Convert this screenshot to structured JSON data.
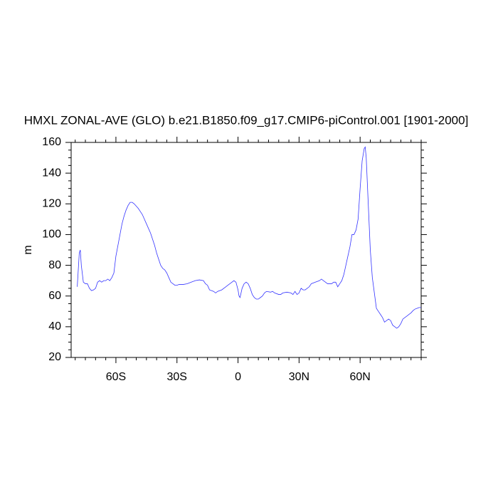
{
  "chart_data": {
    "type": "line",
    "title": "HMXL ZONAL-AVE (GLO) b.e21.B1850.f09_g17.CMIP6-piControl.001 [1901-2000]",
    "y_label": "m",
    "x": [
      -79,
      -78,
      -77.5,
      -77,
      -76,
      -75,
      -74,
      -73,
      -72,
      -71,
      -70,
      -69,
      -68,
      -67,
      -66,
      -65,
      -64,
      -63,
      -62,
      -61,
      -60,
      -59,
      -58,
      -57,
      -56,
      -55,
      -54,
      -53,
      -52,
      -51,
      -50,
      -49,
      -48,
      -47,
      -46,
      -45,
      -44,
      -43,
      -42,
      -41,
      -40,
      -39,
      -38,
      -37,
      -36,
      -35,
      -34,
      -33,
      -32,
      -31,
      -30,
      -29,
      -28,
      -27,
      -25,
      -23,
      -21,
      -19,
      -17,
      -16,
      -15,
      -14,
      -12,
      -11,
      -10,
      -8,
      -6,
      -5,
      -4,
      -2,
      -1,
      0,
      0.5,
      1,
      2,
      3,
      4,
      5,
      6,
      7,
      8,
      9,
      10,
      11,
      12,
      13,
      14,
      16,
      17,
      18,
      20,
      21,
      22,
      24,
      26,
      27,
      28,
      29,
      30,
      31,
      32,
      33,
      35,
      36,
      38,
      40,
      41,
      42,
      43,
      44,
      46,
      47,
      48,
      49,
      50,
      51,
      52,
      53,
      54,
      55,
      56,
      57,
      58,
      59,
      60,
      61,
      62,
      62.5,
      63,
      64,
      65,
      66,
      67,
      68,
      69,
      70,
      71,
      72,
      73,
      74,
      75,
      76,
      77,
      78,
      79,
      80,
      81,
      82,
      83,
      84,
      85,
      86,
      87,
      88,
      89,
      90
    ],
    "series": [
      {
        "name": "HMXL",
        "color": "#3333ff",
        "values": [
          66,
          88,
          90,
          80,
          69,
          68,
          68,
          65,
          63.5,
          64,
          65,
          69,
          70,
          69,
          70,
          70,
          71,
          70,
          72,
          75,
          86,
          93,
          100,
          107,
          112,
          116,
          119,
          121,
          121,
          120,
          118.5,
          117,
          115,
          113,
          110,
          107,
          104,
          101,
          97,
          93,
          88,
          84,
          80,
          78,
          77,
          75,
          72,
          69,
          68,
          67,
          67,
          67.5,
          67.5,
          67.5,
          68,
          69,
          70,
          70.5,
          70,
          68,
          67,
          64,
          63,
          62,
          63,
          64,
          66,
          67,
          68,
          70,
          69,
          64,
          60,
          59,
          65,
          68,
          69,
          68,
          65,
          61,
          59,
          58,
          58,
          59,
          60,
          62,
          63,
          62.5,
          63,
          62,
          61,
          61,
          62,
          62.5,
          62,
          61,
          63,
          61,
          62,
          65,
          64,
          64,
          66,
          68,
          69,
          70,
          71,
          70,
          69,
          68,
          68,
          69,
          69,
          66,
          68,
          70,
          74,
          80,
          86,
          92,
          100,
          100,
          103,
          110,
          130,
          148,
          156,
          157,
          150,
          120,
          90,
          72,
          62,
          52,
          50,
          48,
          46,
          43,
          44,
          45,
          44,
          41,
          40,
          39,
          40,
          42,
          45,
          46,
          47,
          48,
          49,
          50.5,
          51.5,
          52,
          52.5,
          52.5
        ]
      }
    ],
    "xlim": [
      -82,
      90
    ],
    "xticks": [
      {
        "value": -60,
        "label": "60S"
      },
      {
        "value": -30,
        "label": "30S"
      },
      0,
      {
        "value": 30,
        "label": "30N"
      },
      {
        "value": 60,
        "label": "60N"
      }
    ],
    "xminorticks": [
      -80,
      -75,
      -70,
      -65,
      -55,
      -50,
      -45,
      -40,
      -35,
      -25,
      -20,
      -15,
      -10,
      -5,
      5,
      10,
      15,
      20,
      25,
      35,
      40,
      45,
      50,
      55,
      65,
      70,
      75,
      80,
      85,
      90
    ],
    "ylim": [
      20,
      160
    ],
    "yticks": [
      20,
      40,
      60,
      80,
      100,
      120,
      140,
      160
    ],
    "yminorticks": [
      25,
      30,
      35,
      45,
      50,
      55,
      65,
      70,
      75,
      85,
      90,
      95,
      105,
      110,
      115,
      125,
      130,
      135,
      145,
      150,
      155
    ]
  }
}
